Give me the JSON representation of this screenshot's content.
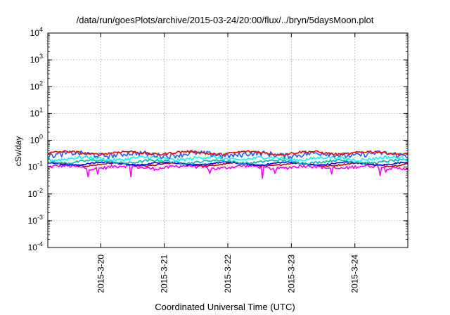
{
  "chart_data": {
    "type": "line",
    "title": "/data/run/goesPlots/archive/2015-03-24/20:00/flux/../bryn/5daysMoon.plot",
    "xlabel": "Coordinated Universal Time (UTC)",
    "ylabel": "cSv/day",
    "yscale": "log",
    "ylim": [
      0.0001,
      10000
    ],
    "y_ticks": [
      {
        "base": "10",
        "exp": "-4",
        "value": 0.0001
      },
      {
        "base": "10",
        "exp": "-3",
        "value": 0.001
      },
      {
        "base": "10",
        "exp": "-2",
        "value": 0.01
      },
      {
        "base": "10",
        "exp": "-1",
        "value": 0.1
      },
      {
        "base": "10",
        "exp": "0",
        "value": 1
      },
      {
        "base": "10",
        "exp": "1",
        "value": 10
      },
      {
        "base": "10",
        "exp": "2",
        "value": 100
      },
      {
        "base": "10",
        "exp": "3",
        "value": 1000
      },
      {
        "base": "10",
        "exp": "4",
        "value": 10000
      }
    ],
    "xlim": [
      "2015-03-19T04:00",
      "2015-03-24T20:00"
    ],
    "x_ticks": [
      "2015-3-20",
      "2015-3-21",
      "2015-3-22",
      "2015-3-23",
      "2015-3-24"
    ],
    "grid": true,
    "series": [
      {
        "color": "#ff00ff",
        "base": 0.1,
        "jitter": 0.14,
        "spikes": true
      },
      {
        "color": "#c00000",
        "base": 0.125,
        "jitter": 0.06,
        "spikes": false
      },
      {
        "color": "#0000ff",
        "base": 0.135,
        "jitter": 0.06,
        "spikes": false
      },
      {
        "color": "#00b0b0",
        "base": 0.16,
        "jitter": 0.1,
        "spikes": false
      },
      {
        "color": "#00ffff",
        "base": 0.21,
        "jitter": 0.14,
        "spikes": false
      },
      {
        "color": "#1f5fff",
        "base": 0.3,
        "jitter": 0.22,
        "spikes": false
      },
      {
        "color": "#ff0000",
        "base": 0.34,
        "jitter": 0.1,
        "spikes": false
      }
    ]
  }
}
